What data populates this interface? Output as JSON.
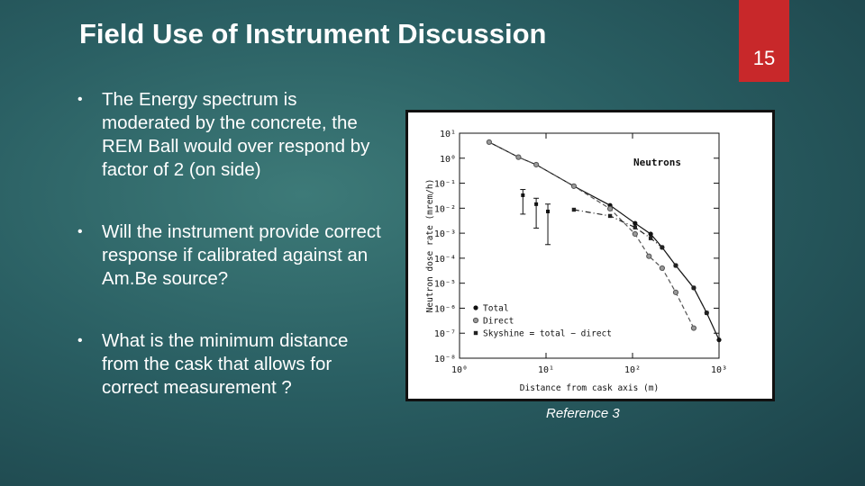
{
  "slide": {
    "title": "Field Use of Instrument Discussion",
    "page_number": "15",
    "bullets": [
      "The Energy spectrum is moderated by the concrete, the REM Ball would over respond by factor of 2 (on side)",
      "Will the instrument provide correct response if calibrated against an Am.Be source?",
      "What is the minimum distance from the cask that allows for correct measurement ?"
    ],
    "caption": "Reference 3"
  },
  "chart_data": {
    "type": "line",
    "annotation": "Neutrons",
    "x_label": "Distance from cask axis (m)",
    "y_label": "Neutron dose rate (mrem/h)",
    "xscale": "log",
    "yscale": "log",
    "xlim": [
      1,
      1000
    ],
    "ylim": [
      1e-08,
      10
    ],
    "xticks": [
      {
        "value": 1,
        "label": "10⁰"
      },
      {
        "value": 10,
        "label": "10¹"
      },
      {
        "value": 100,
        "label": "10²"
      },
      {
        "value": 1000,
        "label": "10³"
      }
    ],
    "yticks": [
      {
        "value": 10,
        "label": "10¹"
      },
      {
        "value": 1,
        "label": "10⁰"
      },
      {
        "value": 0.1,
        "label": "10⁻¹"
      },
      {
        "value": 0.01,
        "label": "10⁻²"
      },
      {
        "value": 0.001,
        "label": "10⁻³"
      },
      {
        "value": 0.0001,
        "label": "10⁻⁴"
      },
      {
        "value": 1e-05,
        "label": "10⁻⁵"
      },
      {
        "value": 1e-06,
        "label": "10⁻⁶"
      },
      {
        "value": 1e-07,
        "label": "10⁻⁷"
      },
      {
        "value": 1e-08,
        "label": "10⁻⁸"
      }
    ],
    "legend": "lower left",
    "series": [
      {
        "name": "Total",
        "color": "#111111",
        "dash": "solid",
        "marker": "dot",
        "x": [
          2.2,
          4.8,
          7.7,
          21,
          55,
          107,
          162,
          220,
          316,
          510,
          720,
          1000
        ],
        "values": [
          4.4,
          1.1,
          0.55,
          0.076,
          0.013,
          0.0025,
          0.00093,
          0.00027,
          5.1e-05,
          6.5e-06,
          6.5e-07,
          5.4e-08
        ]
      },
      {
        "name": "Direct",
        "color": "#555555",
        "dash": "dashed",
        "marker": "ring",
        "x": [
          2.2,
          4.8,
          7.7,
          21,
          55,
          107,
          155,
          220,
          316,
          510
        ],
        "values": [
          4.4,
          1.1,
          0.55,
          0.076,
          0.0095,
          0.00093,
          0.00012,
          4e-05,
          4.3e-06,
          1.6e-07
        ]
      },
      {
        "name": "Skyshine = total − direct",
        "color": "#222222",
        "dash": "dashdot",
        "marker": "square",
        "x": [
          21,
          55,
          107,
          162,
          220,
          316,
          510,
          720
        ],
        "values": [
          0.0087,
          0.0049,
          0.0017,
          0.00063,
          0.00027,
          5.1e-05,
          6.5e-06,
          6.5e-07
        ]
      }
    ],
    "measured": {
      "x": [
        5.4,
        7.7,
        10.5
      ],
      "values": [
        0.033,
        0.0145,
        0.0074
      ],
      "lower": [
        0.0058,
        0.0016,
        0.00035
      ],
      "upper": [
        0.056,
        0.025,
        0.0146
      ]
    }
  }
}
